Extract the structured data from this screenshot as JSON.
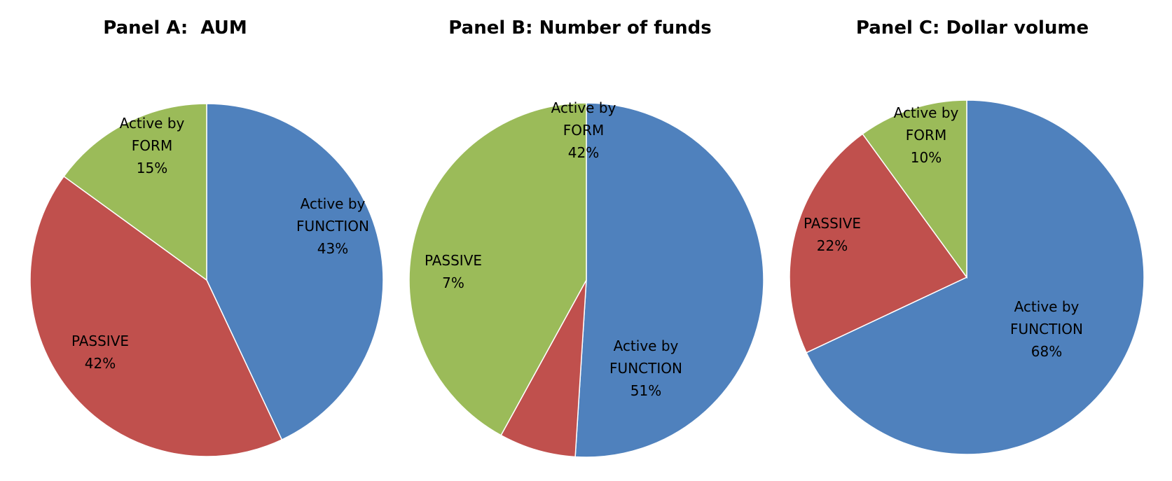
{
  "colors": {
    "function": "#4f81bd",
    "passive": "#c0504d",
    "form": "#9bbb59"
  },
  "chart_data": [
    {
      "type": "pie",
      "title": "Panel A:  AUM",
      "slices": [
        {
          "label_lines": [
            "Active by",
            "FUNCTION"
          ],
          "value": 43,
          "value_label": "43%",
          "color_key": "function"
        },
        {
          "label_lines": [
            "PASSIVE"
          ],
          "value": 42,
          "value_label": "42%",
          "color_key": "passive"
        },
        {
          "label_lines": [
            "Active by",
            "FORM"
          ],
          "value": 15,
          "value_label": "15%",
          "color_key": "form"
        }
      ]
    },
    {
      "type": "pie",
      "title": "Panel B: Number of funds",
      "slices": [
        {
          "label_lines": [
            "Active by",
            "FUNCTION"
          ],
          "value": 51,
          "value_label": "51%",
          "color_key": "function"
        },
        {
          "label_lines": [
            "PASSIVE"
          ],
          "value": 7,
          "value_label": "7%",
          "color_key": "passive"
        },
        {
          "label_lines": [
            "Active by",
            "FORM"
          ],
          "value": 42,
          "value_label": "42%",
          "color_key": "form"
        }
      ]
    },
    {
      "type": "pie",
      "title": "Panel C: Dollar volume",
      "slices": [
        {
          "label_lines": [
            "Active by",
            "FUNCTION"
          ],
          "value": 68,
          "value_label": "68%",
          "color_key": "function"
        },
        {
          "label_lines": [
            "PASSIVE"
          ],
          "value": 22,
          "value_label": "22%",
          "color_key": "passive"
        },
        {
          "label_lines": [
            "Active by",
            "FORM"
          ],
          "value": 10,
          "value_label": "10%",
          "color_key": "form"
        }
      ]
    }
  ]
}
